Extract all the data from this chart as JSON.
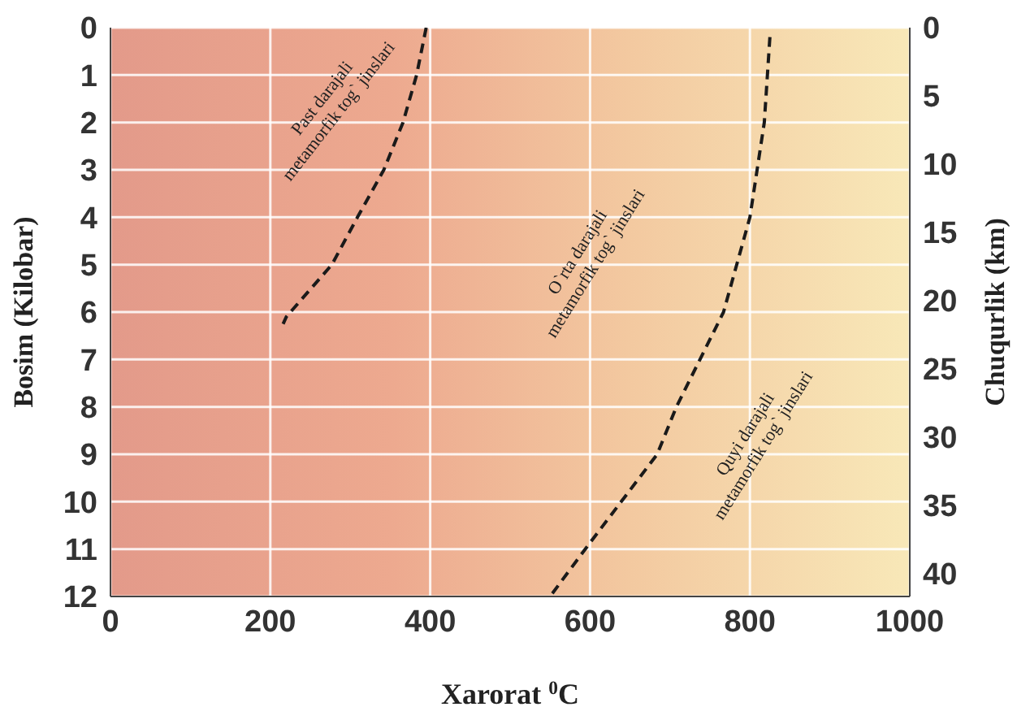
{
  "chart_data": {
    "type": "line",
    "xlabel": "Xarorat $^{0}$C",
    "ylabel": "Bosim (Kilobar)",
    "y2label": "Chuqurlik (km)",
    "xlim": [
      0,
      1000
    ],
    "xticks": [
      0,
      200,
      400,
      600,
      800,
      1000
    ],
    "ylim": [
      12,
      0
    ],
    "yticks": [
      0,
      1,
      2,
      3,
      4,
      5,
      6,
      7,
      8,
      9,
      10,
      11,
      12
    ],
    "y2lim": [
      41.7,
      0
    ],
    "y2ticks": [
      0,
      5,
      10,
      15,
      20,
      25,
      30,
      35,
      40
    ],
    "grid": true,
    "legend": false,
    "marker": "none",
    "line_style": "dashed",
    "series": [
      {
        "color": "#1a1a1a",
        "x": [
          395,
          383,
          366,
          342,
          309,
          277,
          220,
          216
        ],
        "values": [
          0,
          1,
          2,
          3,
          4,
          5,
          6.1,
          6.25
        ]
      },
      {
        "color": "#1a1a1a",
        "x": [
          825,
          818,
          800,
          767,
          708,
          684,
          639,
          594,
          550
        ],
        "values": [
          0.2,
          2,
          4,
          6,
          8,
          9,
          10,
          11,
          12
        ]
      }
    ],
    "annotations": [
      "Past darajali\nmetamorfik tog` jinslari",
      "O`rta darajali\nmetamorfik tog` jinslari",
      "Quyi darajali\nmetamorfik tog` jinslari"
    ]
  }
}
